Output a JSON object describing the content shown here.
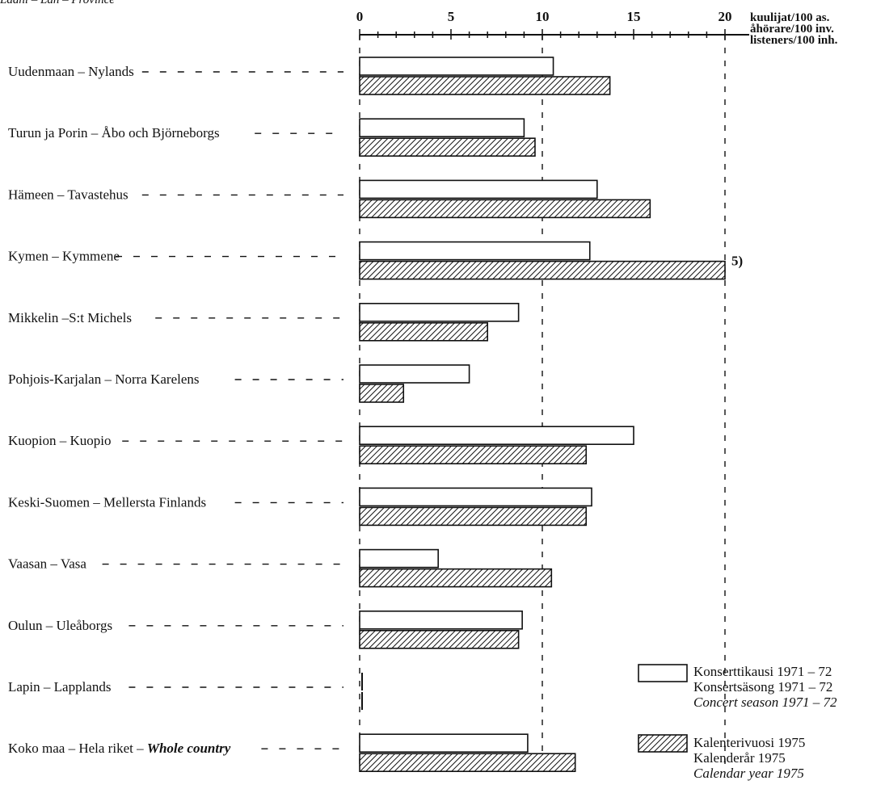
{
  "top_fragment": "Lääni – Län – Province",
  "chart_data": {
    "type": "bar",
    "orientation": "horizontal",
    "xlim": [
      0,
      20
    ],
    "xticks": [
      "0",
      "5",
      "10",
      "15",
      "20"
    ],
    "unit_label": [
      "kuulijat/100 as.",
      "åhörare/100 inv.",
      "listeners/100 inh."
    ],
    "grid": "dashed vertical at 0, 10, 20",
    "legend_position": "bottom-right",
    "categories": [
      {
        "label": "Uudenmaan – Nylands"
      },
      {
        "label": "Turun ja Porin – Åbo och Björneborgs"
      },
      {
        "label": "Hämeen – Tavastehus"
      },
      {
        "label": "Kymen – Kymmene"
      },
      {
        "label": "Mikkelin –S:t Michels"
      },
      {
        "label": "Pohjois-Karjalan – Norra Karelens"
      },
      {
        "label": "Kuopion – Kuopio"
      },
      {
        "label": "Keski-Suomen – Mellersta Finlands"
      },
      {
        "label": "Vaasan – Vasa"
      },
      {
        "label": "Oulun – Uleåborgs"
      },
      {
        "label": "Lapin – Lapplands"
      },
      {
        "label": "Koko maa – Hela riket – ",
        "label_italic": "Whole country"
      }
    ],
    "series": [
      {
        "name": "Konserttikausi 1971–72 / Konsertsäsong 1971–72 / Concert season 1971–72",
        "style": "open",
        "values": [
          10.6,
          9.0,
          13.0,
          12.6,
          8.7,
          6.0,
          15.0,
          12.7,
          4.3,
          8.9,
          0,
          9.2
        ]
      },
      {
        "name": "Kalenterivuosi 1975 / Kalenderår 1975 / Calendar year 1975",
        "style": "hatched",
        "values": [
          13.7,
          9.6,
          15.9,
          20.0,
          7.0,
          2.4,
          12.4,
          12.4,
          10.5,
          8.7,
          0,
          11.8
        ]
      }
    ],
    "annotations": [
      {
        "category_index": 3,
        "series_index": 1,
        "text": "5)"
      }
    ]
  },
  "legend": [
    {
      "style": "open",
      "lines": [
        "Konserttikausi 1971 – 72",
        "Konsertsäsong 1971 – 72",
        "Concert season 1971 – 72"
      ]
    },
    {
      "style": "hatched",
      "lines": [
        "Kalenterivuosi 1975",
        "Kalenderår 1975",
        "Calendar year 1975"
      ]
    }
  ]
}
